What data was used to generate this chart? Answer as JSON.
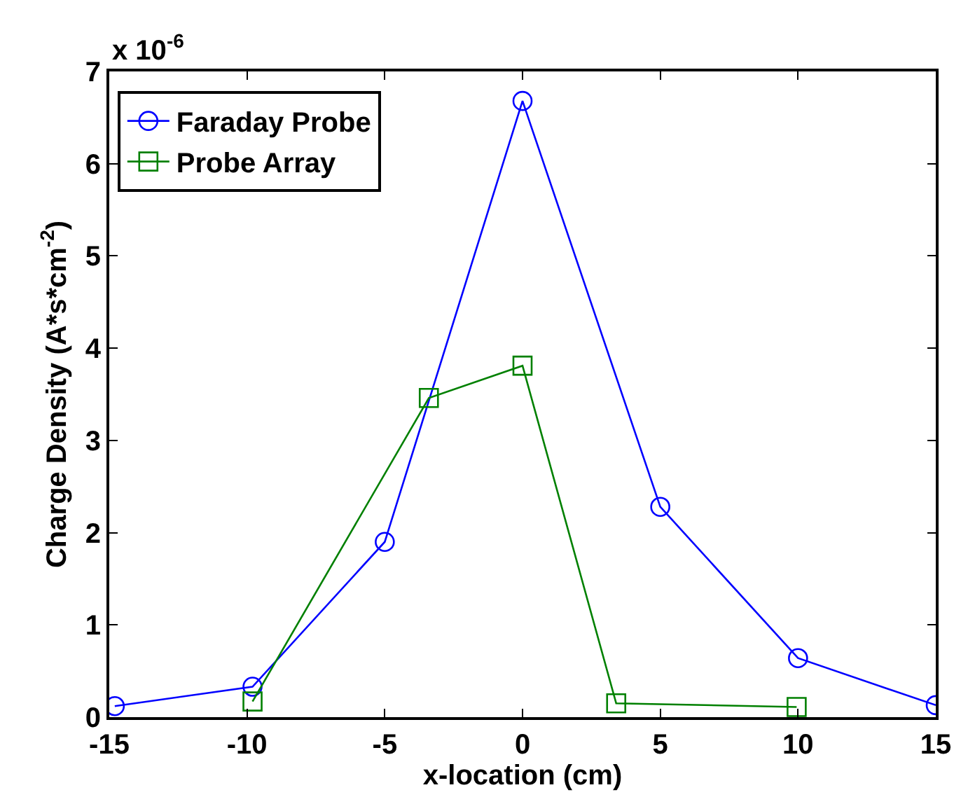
{
  "chart_data": {
    "type": "line",
    "xlabel": "x-location (cm)",
    "ylabel": "Charge Density (A*s*cm$^{-2}$)",
    "annotations": [
      "x 10$^{-6}$"
    ],
    "xlim": [
      -15,
      15
    ],
    "xticks": [
      -15,
      -10,
      -5,
      0,
      5,
      10,
      15
    ],
    "ylim": [
      0,
      7
    ],
    "yticks": [
      0,
      1,
      2,
      3,
      4,
      5,
      6,
      7
    ],
    "legend": "top left",
    "series": [
      {
        "name": "Faraday Probe",
        "color": "#0000ff",
        "marker": "circle",
        "x": [
          -14.8,
          -9.8,
          -5,
          0,
          5,
          10,
          15
        ],
        "values": [
          0.12,
          0.33,
          1.9,
          6.68,
          2.28,
          0.64,
          0.13
        ]
      },
      {
        "name": "Probe Array",
        "color": "#008000",
        "marker": "square",
        "x": [
          -9.8,
          -3.4,
          0,
          3.4,
          9.95
        ],
        "values": [
          0.17,
          3.46,
          3.81,
          0.15,
          0.11
        ]
      }
    ]
  }
}
